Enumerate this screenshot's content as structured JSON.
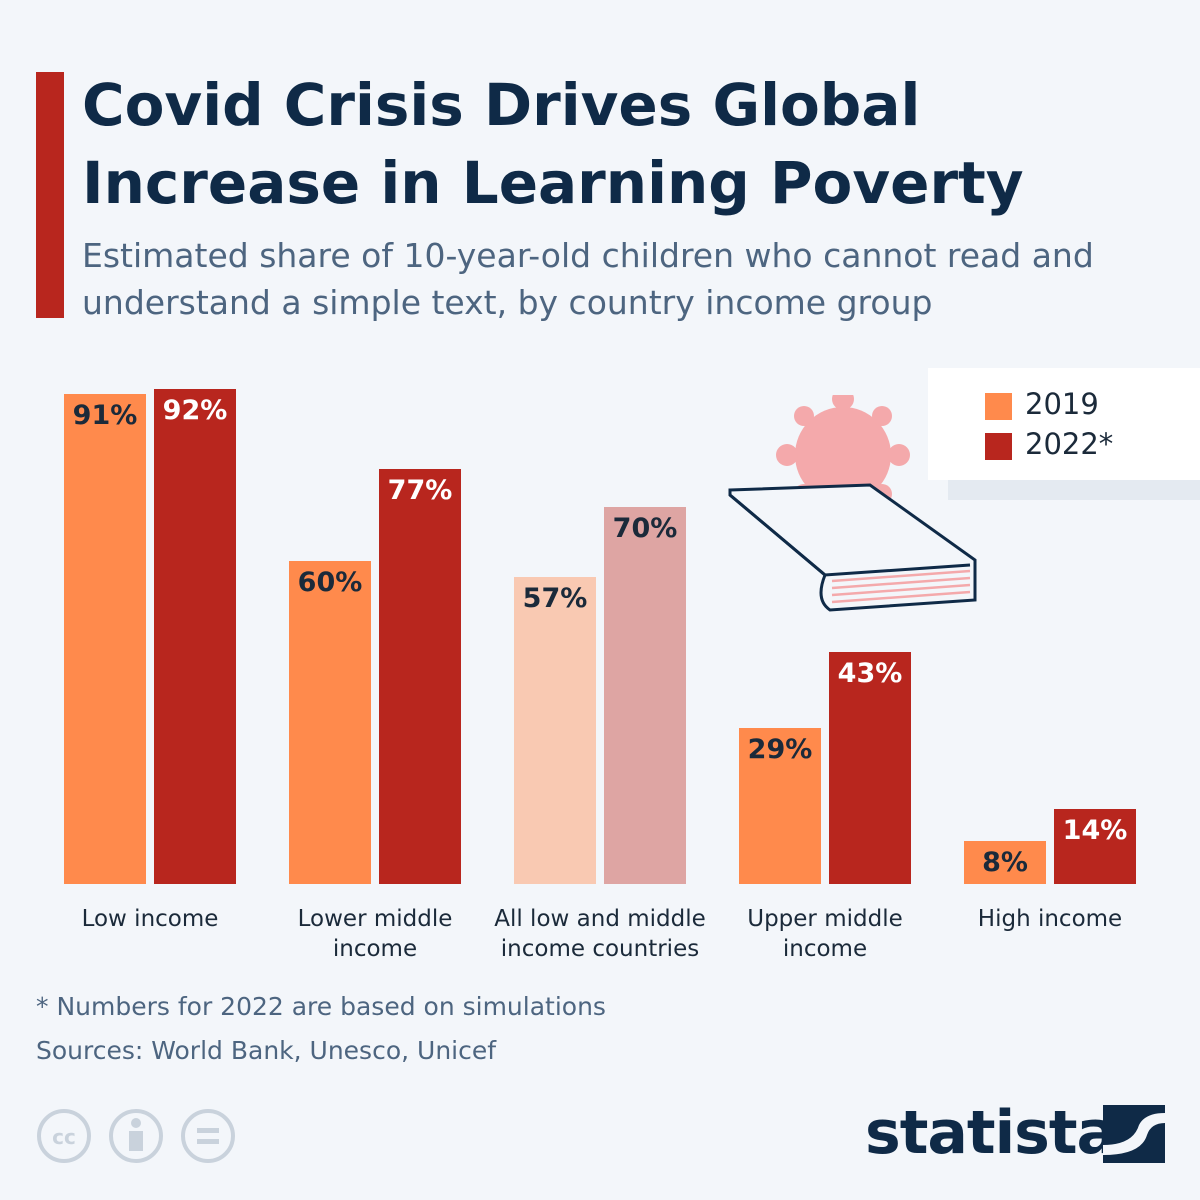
{
  "chart_data": {
    "type": "bar",
    "title": "Covid Crisis Drives Global Increase in Learning Poverty",
    "subtitle": "Estimated share of 10-year-old children who cannot read and understand a simple text, by country income group",
    "categories": [
      "Low income",
      "Lower middle\nincome",
      "All low and middle\nincome countries",
      "Upper middle\nincome",
      "High income"
    ],
    "series": [
      {
        "name": "2019",
        "color": "#ff8a4c",
        "colors": [
          "#ff8a4c",
          "#ff8a4c",
          "#f9c9b2",
          "#ff8a4c",
          "#ff8a4c"
        ],
        "values": [
          91,
          60,
          57,
          29,
          8
        ],
        "value_labels": [
          "91%",
          "60%",
          "57%",
          "29%",
          "8%"
        ]
      },
      {
        "name": "2022*",
        "color": "#b8261e",
        "colors": [
          "#b8261e",
          "#b8261e",
          "#dea5a3",
          "#b8261e",
          "#b8261e"
        ],
        "values": [
          92,
          77,
          70,
          43,
          14
        ],
        "value_labels": [
          "92%",
          "77%",
          "70%",
          "43%",
          "14%"
        ]
      }
    ],
    "footnote": "* Numbers for 2022 are based on simulations",
    "source": "Sources: World Bank, Unesco, Unicef",
    "brand": "statista"
  }
}
